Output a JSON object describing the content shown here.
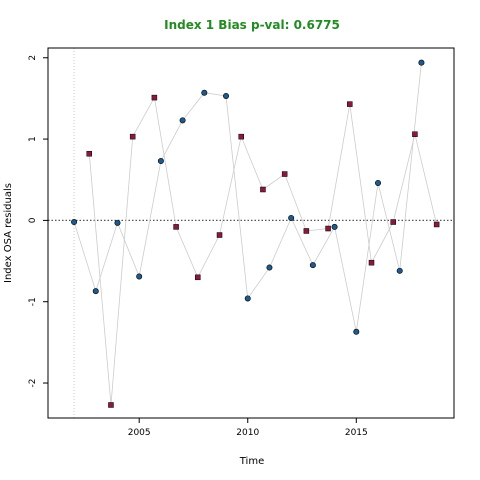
{
  "chart_data": {
    "type": "scatter",
    "title": "Index 1 Bias p-val: 0.6775",
    "xlabel": "Time",
    "ylabel": "Index OSA residuals",
    "xlim": [
      2000.8,
      2019.5
    ],
    "ylim": [
      -2.43,
      2.12
    ],
    "x_ticks": [
      2005,
      2010,
      2015
    ],
    "y_ticks": [
      -2,
      -1,
      0,
      1,
      2
    ],
    "grid": false,
    "reference_line_y": 0,
    "vertical_reference_x": 2002,
    "colors": {
      "title": "#228b22",
      "series_a_fill": "#1f5a8c",
      "series_b_fill": "#8b1a3a",
      "connector_line": "#cccccc",
      "reference_line": "#555555"
    },
    "series": [
      {
        "marker": "circle",
        "x": [
          2002.0,
          2003.0,
          2004.0,
          2005.0,
          2006.0,
          2007.0,
          2008.0,
          2009.0,
          2010.0,
          2011.0,
          2012.0,
          2013.0,
          2014.0,
          2015.0,
          2016.0,
          2017.0,
          2018.0
        ],
        "y": [
          -0.02,
          -0.87,
          -0.03,
          -0.69,
          0.73,
          1.23,
          1.57,
          1.53,
          -0.96,
          -0.58,
          0.03,
          -0.55,
          -0.08,
          -1.37,
          0.46,
          -0.62,
          1.94
        ]
      },
      {
        "marker": "square",
        "x": [
          2002.7,
          2003.7,
          2004.7,
          2005.7,
          2006.7,
          2007.7,
          2008.7,
          2009.7,
          2010.7,
          2011.7,
          2012.7,
          2013.7,
          2014.7,
          2015.7,
          2016.7,
          2017.7,
          2018.7
        ],
        "y": [
          0.82,
          -2.27,
          1.03,
          1.51,
          -0.08,
          -0.7,
          -0.18,
          1.03,
          0.38,
          0.57,
          -0.13,
          -0.1,
          1.43,
          -0.52,
          -0.02,
          1.06,
          -0.05
        ]
      }
    ]
  }
}
